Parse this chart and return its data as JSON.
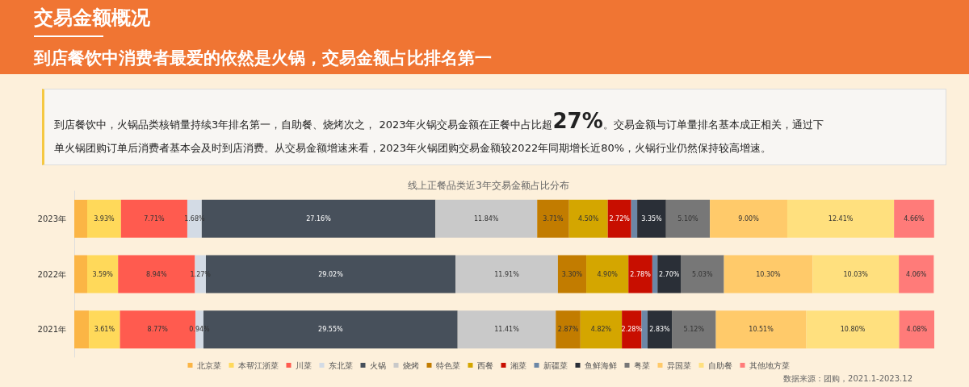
{
  "chart_data": {
    "type": "bar",
    "orientation": "horizontal",
    "stacked": true,
    "title": "交易金额概况",
    "subtitle": "到店餐饮中消费者最爱的依然是火锅，交易金额占比排名第一",
    "annotations": [
      "线上正餐品类近3年交易金额占比分布",
      "到店餐饮中，火锅品类核销量持续3年排名第一，自助餐、烧烤次之， 2023年火锅交易金额在正餐中占比超",
      "27%",
      "。交易金额与订单量排名基本成正相关，通过下",
      "单火锅团购订单后消费者基本会及时到店消费。从交易金额增速来看，2023年火锅团购交易金额较2022年同期增长近80%，火锅行业仍然保持较高增速。",
      "数据来源：团购，2021.1-2023.12"
    ],
    "categories": [
      "2023年",
      "2022年",
      "2021年"
    ],
    "series": [
      {
        "name": "北京菜",
        "color": "#fbb545",
        "values": [
          1.5,
          1.5,
          1.7
        ]
      },
      {
        "name": "本帮江浙菜",
        "color": "#ffd95a",
        "values": [
          3.93,
          3.59,
          3.61
        ],
        "value_labels": [
          "3.93%",
          "3.59%",
          "3.61%"
        ]
      },
      {
        "name": "川菜",
        "color": "#ff5b4f",
        "values": [
          7.71,
          8.94,
          8.77
        ],
        "value_labels": [
          "7.71%",
          "8.94%",
          "8.77%"
        ]
      },
      {
        "name": "东北菜",
        "color": "#d3dbe5",
        "values": [
          1.68,
          1.27,
          0.94
        ],
        "value_labels": [
          "1.68%",
          "1.27%",
          "0.94%"
        ]
      },
      {
        "name": "火锅",
        "color": "#47505b",
        "values": [
          27.16,
          29.02,
          29.55
        ],
        "value_labels": [
          "27.16%",
          "29.02%",
          "29.55%"
        ]
      },
      {
        "name": "烧烤",
        "color": "#c9c9c9",
        "values": [
          11.84,
          11.91,
          11.41
        ],
        "value_labels": [
          "11.84%",
          "11.91%",
          "11.41%"
        ]
      },
      {
        "name": "特色菜",
        "color": "#c27c00",
        "values": [
          3.71,
          3.3,
          2.87
        ],
        "value_labels": [
          "3.71%",
          "3.30%",
          "2.87%"
        ]
      },
      {
        "name": "西餐",
        "color": "#d4a600",
        "values": [
          4.5,
          4.9,
          4.82
        ],
        "value_labels": [
          "4.50%",
          "4.90%",
          "4.82%"
        ]
      },
      {
        "name": "湘菜",
        "color": "#c80e00",
        "values": [
          2.72,
          2.78,
          2.28
        ],
        "value_labels": [
          "2.72%",
          "2.78%",
          "2.28%"
        ]
      },
      {
        "name": "新疆菜",
        "color": "#6b87a6",
        "values": [
          0.7,
          0.6,
          0.7
        ]
      },
      {
        "name": "鱼鲜海鲜",
        "color": "#2a2f37",
        "values": [
          3.35,
          2.7,
          2.83
        ],
        "value_labels": [
          "3.35%",
          "2.70%",
          "2.83%"
        ]
      },
      {
        "name": "粤菜",
        "color": "#777777",
        "values": [
          5.1,
          5.03,
          5.12
        ],
        "value_labels": [
          "5.10%",
          "5.03%",
          "5.12%"
        ]
      },
      {
        "name": "异国菜",
        "color": "#ffca6a",
        "values": [
          9.0,
          10.3,
          10.51
        ],
        "value_labels": [
          "9.00%",
          "10.30%",
          "10.51%"
        ]
      },
      {
        "name": "自助餐",
        "color": "#ffe07e",
        "values": [
          12.41,
          10.03,
          10.8
        ],
        "value_labels": [
          "12.41%",
          "10.03%",
          "10.80%"
        ]
      },
      {
        "name": "其他地方菜",
        "color": "#ff7b79",
        "values": [
          4.66,
          4.06,
          4.08
        ],
        "value_labels": [
          "4.66%",
          "4.06%",
          "4.08%"
        ]
      }
    ],
    "legend": "bottom",
    "tick_labels": "y"
  }
}
